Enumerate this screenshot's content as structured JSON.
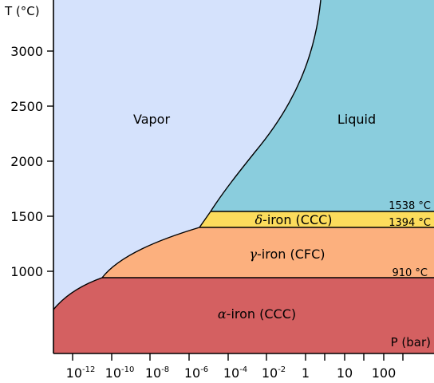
{
  "axes": {
    "y_title": "T (°C)",
    "x_title": "P (bar)",
    "y_ticks": [
      "3000",
      "2500",
      "2000",
      "1500",
      "1000"
    ],
    "x_ticks": [
      {
        "base": "10",
        "exp": "-12"
      },
      {
        "base": "10",
        "exp": "-10"
      },
      {
        "base": "10",
        "exp": "-8"
      },
      {
        "base": "10",
        "exp": "-6"
      },
      {
        "base": "10",
        "exp": "-4"
      },
      {
        "base": "10",
        "exp": "-2"
      },
      {
        "base": "1",
        "exp": ""
      },
      {
        "base": "10",
        "exp": ""
      },
      {
        "base": "100",
        "exp": ""
      }
    ]
  },
  "regions": {
    "vapor": "Vapor",
    "liquid": "Liquid",
    "delta": {
      "greek": "δ",
      "text": "-iron (CCC)"
    },
    "gamma": {
      "greek": "γ",
      "text": "-iron (CFC)"
    },
    "alpha": {
      "greek": "α",
      "text": "-iron (CCC)"
    }
  },
  "transitions": [
    "1538 °C",
    "1394 °C",
    "910 °C"
  ],
  "colors": {
    "vapor": "#d5e2fc",
    "liquid": "#8acddd",
    "delta": "#fcdc5c",
    "gamma": "#fcb07e",
    "alpha": "#d46061"
  }
}
